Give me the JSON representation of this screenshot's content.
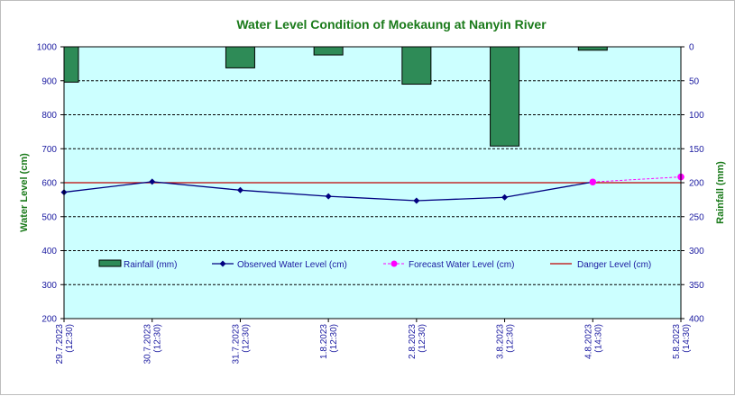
{
  "chart_data": {
    "type": "bar+line",
    "title": "Water Level Condition of Moekaung at Nanyin River",
    "ylabel": "Water Level (cm)",
    "y2label": "Rainfall  (mm)",
    "ylim": [
      200,
      1000
    ],
    "y2lim": [
      0,
      400
    ],
    "y2_inverted": true,
    "yticks": [
      200,
      300,
      400,
      500,
      600,
      700,
      800,
      900,
      1000
    ],
    "y2ticks": [
      0,
      50,
      100,
      150,
      200,
      250,
      300,
      350,
      400
    ],
    "categories": [
      {
        "date": "29.7.2023",
        "time": "(12:30)"
      },
      {
        "date": "30.7.2023",
        "time": "(12:30)"
      },
      {
        "date": "31.7.2023",
        "time": "(12:30)"
      },
      {
        "date": "1.8.2023",
        "time": "(12:30)"
      },
      {
        "date": "2.8.2023",
        "time": "(12:30)"
      },
      {
        "date": "3.8.2023",
        "time": "(12:30)"
      },
      {
        "date": "4.8.2023",
        "time": "(14:30)"
      },
      {
        "date": "5.8.2023",
        "time": "(14:30)"
      }
    ],
    "rainfall": [
      52,
      null,
      31,
      12,
      55,
      146,
      5,
      null
    ],
    "observed": [
      572,
      603,
      578,
      560,
      547,
      557,
      602,
      null
    ],
    "forecast": [
      null,
      null,
      null,
      null,
      null,
      null,
      602,
      617
    ],
    "danger_level": 600,
    "grid": true,
    "legend": [
      {
        "label": "Rainfall (mm)",
        "kind": "bar",
        "color": "#2e8b57"
      },
      {
        "label": "Observed Water Level (cm)",
        "kind": "line",
        "color": "#000080"
      },
      {
        "label": "Forecast Water Level (cm)",
        "kind": "dashed",
        "color": "#ff00ff"
      },
      {
        "label": "Danger Level (cm)",
        "kind": "line",
        "color": "#c00000"
      }
    ],
    "legend_position": "bottom-center",
    "colors": {
      "plot_bg": "#ccffff",
      "rain": "#2e8b57",
      "observed": "#000080",
      "forecast": "#ff00ff",
      "danger": "#c00000"
    }
  }
}
